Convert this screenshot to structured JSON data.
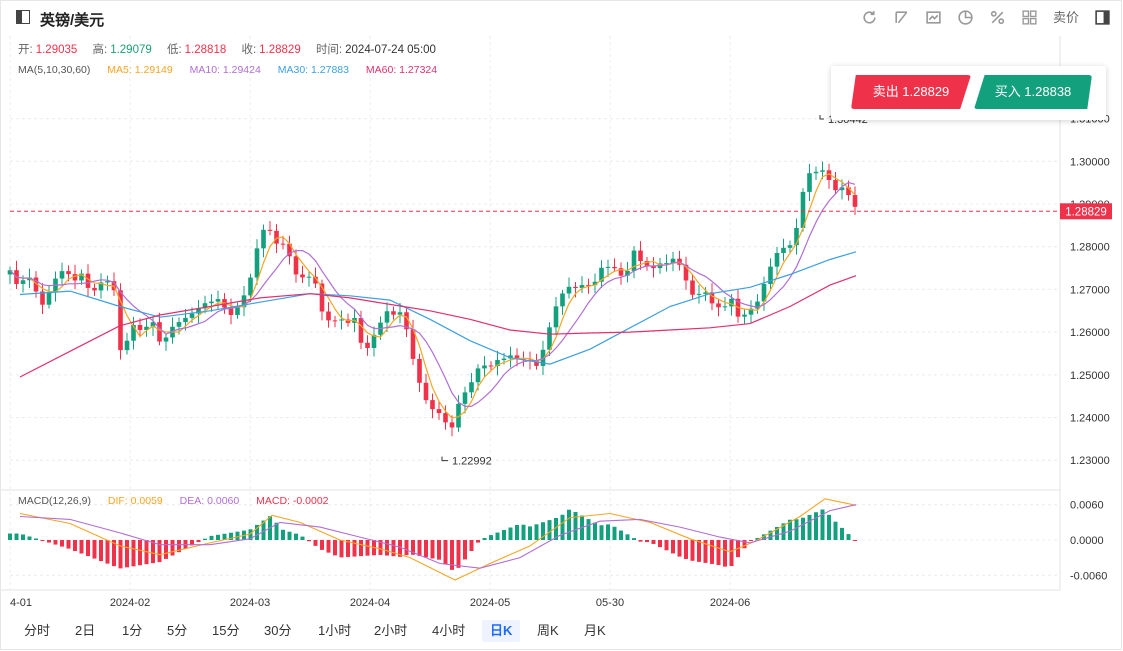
{
  "header": {
    "title": "英镑/美元",
    "tools": [
      "refresh-icon",
      "draw-icon",
      "chart-type-icon",
      "pie-icon",
      "percent-icon",
      "grid-icon"
    ],
    "price_mode": "卖价",
    "ohlc": {
      "open_label": "开:",
      "open": "1.29035",
      "high_label": "高:",
      "high": "1.29079",
      "low_label": "低:",
      "low": "1.28818",
      "close_label": "收:",
      "close": "1.28829",
      "time_label": "时间:",
      "time": "2024-07-24 05:00"
    }
  },
  "ma_legend": {
    "label": "MA(5,10,30,60)",
    "ma5": "MA5: 1.29149",
    "ma10": "MA10: 1.29424",
    "ma30": "MA30: 1.27883",
    "ma60": "MA60: 1.27324"
  },
  "macd_legend": {
    "label": "MACD(12,26,9)",
    "dif": "DIF: 0.0059",
    "dea": "DEA: 0.0060",
    "macd": "MACD: -0.0002"
  },
  "trade": {
    "sell": "卖出 1.28829",
    "buy": "买入 1.28838"
  },
  "periods": [
    "分时",
    "2日",
    "1分",
    "5分",
    "15分",
    "30分",
    "1小时",
    "2小时",
    "4小时",
    "日K",
    "周K",
    "月K"
  ],
  "active_period": "日K",
  "colors": {
    "up": "#13a07d",
    "down": "#f0314a",
    "ma5": "#f5a623",
    "ma10": "#b06fd6",
    "ma30": "#3c9fe3",
    "ma60": "#e0306e",
    "dif": "#f5a623",
    "dea": "#b06fd6"
  },
  "chart_data": {
    "type": "candlestick",
    "x_tick_labels": [
      "4-01",
      "2024-02",
      "2024-03",
      "2024-04",
      "2024-05",
      "05-30",
      "2024-06"
    ],
    "y_ticks": [
      1.23,
      1.24,
      1.25,
      1.26,
      1.27,
      1.28,
      1.29,
      1.3,
      1.31
    ],
    "y_tick_labels": [
      "1.23000",
      "1.24000",
      "1.25000",
      "1.26000",
      "1.27000",
      "1.28000",
      "1.29000",
      "1.30000",
      "1.31000"
    ],
    "ylim": [
      1.2235,
      1.3195
    ],
    "current_price": 1.28829,
    "current_price_label": "1.28829",
    "high_marker_label": "1.30442",
    "low_marker": 1.22992,
    "low_marker_label": "1.22992",
    "close_points": [
      [
        0,
        1.2745
      ],
      [
        8,
        1.2705
      ],
      [
        16,
        1.2745
      ],
      [
        24,
        1.2712
      ],
      [
        32,
        1.267
      ],
      [
        40,
        1.2695
      ],
      [
        48,
        1.2745
      ],
      [
        56,
        1.2735
      ],
      [
        64,
        1.2718
      ],
      [
        72,
        1.2728
      ],
      [
        80,
        1.269
      ],
      [
        88,
        1.27
      ],
      [
        96,
        1.273
      ],
      [
        104,
        1.27
      ],
      [
        112,
        1.253
      ],
      [
        120,
        1.2625
      ],
      [
        128,
        1.261
      ],
      [
        136,
        1.2615
      ],
      [
        144,
        1.262
      ],
      [
        152,
        1.256
      ],
      [
        160,
        1.26
      ],
      [
        168,
        1.262
      ],
      [
        176,
        1.2625
      ],
      [
        184,
        1.265
      ],
      [
        192,
        1.266
      ],
      [
        200,
        1.268
      ],
      [
        208,
        1.268
      ],
      [
        216,
        1.266
      ],
      [
        224,
        1.264
      ],
      [
        232,
        1.268
      ],
      [
        240,
        1.272
      ],
      [
        248,
        1.28
      ],
      [
        256,
        1.2855
      ],
      [
        264,
        1.28
      ],
      [
        272,
        1.281
      ],
      [
        280,
        1.277
      ],
      [
        288,
        1.273
      ],
      [
        296,
        1.273
      ],
      [
        304,
        1.274
      ],
      [
        312,
        1.265
      ],
      [
        320,
        1.263
      ],
      [
        328,
        1.263
      ],
      [
        336,
        1.262
      ],
      [
        344,
        1.263
      ],
      [
        352,
        1.256
      ],
      [
        360,
        1.256
      ],
      [
        368,
        1.261
      ],
      [
        376,
        1.265
      ],
      [
        384,
        1.264
      ],
      [
        392,
        1.266
      ],
      [
        400,
        1.257
      ],
      [
        408,
        1.25
      ],
      [
        416,
        1.244
      ],
      [
        424,
        1.242
      ],
      [
        432,
        1.24
      ],
      [
        440,
        1.236
      ],
      [
        448,
        1.242
      ],
      [
        456,
        1.246
      ],
      [
        464,
        1.249
      ],
      [
        472,
        1.253
      ],
      [
        480,
        1.252
      ],
      [
        488,
        1.254
      ],
      [
        496,
        1.255
      ],
      [
        504,
        1.2545
      ],
      [
        512,
        1.254
      ],
      [
        520,
        1.253
      ],
      [
        528,
        1.252
      ],
      [
        536,
        1.257
      ],
      [
        544,
        1.265
      ],
      [
        552,
        1.268
      ],
      [
        560,
        1.271
      ],
      [
        568,
        1.27
      ],
      [
        576,
        1.272
      ],
      [
        584,
        1.2715
      ],
      [
        592,
        1.276
      ],
      [
        600,
        1.276
      ],
      [
        608,
        1.274
      ],
      [
        616,
        1.273
      ],
      [
        624,
        1.2785
      ],
      [
        632,
        1.276
      ],
      [
        640,
        1.2735
      ],
      [
        648,
        1.276
      ],
      [
        656,
        1.2755
      ],
      [
        664,
        1.278
      ],
      [
        672,
        1.275
      ],
      [
        680,
        1.27
      ],
      [
        688,
        1.269
      ],
      [
        696,
        1.27
      ],
      [
        704,
        1.266
      ],
      [
        712,
        1.265
      ],
      [
        720,
        1.268
      ],
      [
        728,
        1.263
      ],
      [
        736,
        1.264
      ],
      [
        744,
        1.265
      ],
      [
        752,
        1.27
      ],
      [
        760,
        1.275
      ],
      [
        768,
        1.28
      ],
      [
        776,
        1.28
      ],
      [
        784,
        1.282
      ],
      [
        792,
        1.292
      ],
      [
        800,
        1.298
      ],
      [
        808,
        1.297
      ],
      [
        816,
        1.2975
      ],
      [
        824,
        1.292
      ],
      [
        832,
        1.2935
      ],
      [
        840,
        1.2915
      ],
      [
        846,
        1.2883
      ]
    ],
    "ma30_points": [
      [
        10,
        1.2688
      ],
      [
        60,
        1.2696
      ],
      [
        110,
        1.266
      ],
      [
        150,
        1.2635
      ],
      [
        200,
        1.265
      ],
      [
        250,
        1.267
      ],
      [
        300,
        1.269
      ],
      [
        340,
        1.2685
      ],
      [
        380,
        1.2675
      ],
      [
        420,
        1.263
      ],
      [
        460,
        1.258
      ],
      [
        500,
        1.254
      ],
      [
        540,
        1.2525
      ],
      [
        580,
        1.256
      ],
      [
        620,
        1.261
      ],
      [
        660,
        1.266
      ],
      [
        700,
        1.269
      ],
      [
        740,
        1.2705
      ],
      [
        780,
        1.2735
      ],
      [
        820,
        1.277
      ],
      [
        846,
        1.2788
      ]
    ],
    "ma60_points": [
      [
        10,
        1.2495
      ],
      [
        60,
        1.2555
      ],
      [
        110,
        1.2615
      ],
      [
        150,
        1.264
      ],
      [
        200,
        1.266
      ],
      [
        250,
        1.268
      ],
      [
        300,
        1.269
      ],
      [
        340,
        1.268
      ],
      [
        380,
        1.2665
      ],
      [
        420,
        1.265
      ],
      [
        460,
        1.263
      ],
      [
        500,
        1.2605
      ],
      [
        540,
        1.2595
      ],
      [
        580,
        1.2598
      ],
      [
        620,
        1.26
      ],
      [
        660,
        1.2605
      ],
      [
        700,
        1.261
      ],
      [
        740,
        1.262
      ],
      [
        780,
        1.266
      ],
      [
        820,
        1.271
      ],
      [
        846,
        1.2732
      ]
    ],
    "macd_ylim": [
      -0.0085,
      0.0085
    ],
    "macd_y_ticks": [
      -0.006,
      0.0,
      0.006
    ],
    "macd_y_tick_labels": [
      "-0.0060",
      "0.0000",
      "0.0060"
    ],
    "dif_points": [
      [
        10,
        0.0045
      ],
      [
        60,
        0.0028
      ],
      [
        110,
        -0.001
      ],
      [
        150,
        -0.0025
      ],
      [
        200,
        -0.0005
      ],
      [
        240,
        0.001
      ],
      [
        262,
        0.0042
      ],
      [
        290,
        0.003
      ],
      [
        330,
        0.0
      ],
      [
        370,
        -0.0015
      ],
      [
        400,
        -0.003
      ],
      [
        445,
        -0.0068
      ],
      [
        480,
        -0.004
      ],
      [
        520,
        -0.001
      ],
      [
        560,
        0.0038
      ],
      [
        600,
        0.0045
      ],
      [
        640,
        0.003
      ],
      [
        680,
        0.0002
      ],
      [
        720,
        -0.002
      ],
      [
        745,
        -0.0002
      ],
      [
        790,
        0.004
      ],
      [
        815,
        0.007
      ],
      [
        846,
        0.0059
      ]
    ],
    "dea_points": [
      [
        10,
        0.004
      ],
      [
        60,
        0.0035
      ],
      [
        110,
        0.0012
      ],
      [
        150,
        -0.0008
      ],
      [
        200,
        -0.0008
      ],
      [
        240,
        0.0002
      ],
      [
        270,
        0.003
      ],
      [
        310,
        0.0022
      ],
      [
        350,
        0.0005
      ],
      [
        390,
        -0.0012
      ],
      [
        430,
        -0.004
      ],
      [
        470,
        -0.0048
      ],
      [
        510,
        -0.003
      ],
      [
        550,
        0.0008
      ],
      [
        590,
        0.0032
      ],
      [
        630,
        0.0035
      ],
      [
        670,
        0.0022
      ],
      [
        710,
        0.0005
      ],
      [
        740,
        -0.0005
      ],
      [
        780,
        0.0015
      ],
      [
        820,
        0.005
      ],
      [
        846,
        0.006
      ]
    ]
  }
}
